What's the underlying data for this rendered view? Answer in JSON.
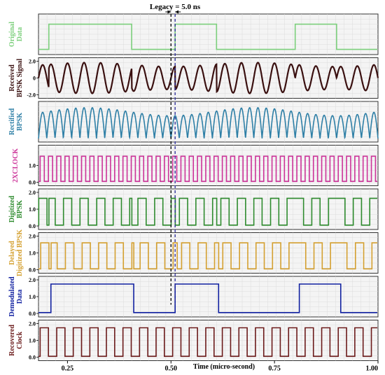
{
  "chart_data": {
    "type": "line",
    "title": "Legacy = 5.0 ns",
    "xlabel": "Time (micro-second)",
    "xlim": [
      0.18,
      1.0
    ],
    "xticks": [
      0.25,
      0.5,
      0.75,
      1.0
    ],
    "xtick_labels": [
      "0.25",
      "0.50",
      "0.75",
      "1.00"
    ],
    "markers": [
      0.5,
      0.51
    ],
    "series": [
      {
        "name": "Original Data",
        "color": "#7ccf7c",
        "ylim": [
          0,
          1
        ],
        "yticks": [],
        "kind": "digital",
        "transitions": [
          [
            0.18,
            0
          ],
          [
            0.205,
            1
          ],
          [
            0.405,
            0
          ],
          [
            0.51,
            1
          ],
          [
            0.61,
            0
          ],
          [
            0.8,
            1
          ],
          [
            0.9,
            0
          ]
        ]
      },
      {
        "name": "Received BPSK Signal",
        "color": "#3a1010",
        "ylim": [
          -2.0,
          2.0
        ],
        "yticks": [
          -2.0,
          0,
          2.0
        ],
        "ytick_labels": [
          "-2.0",
          "0",
          "2.0"
        ],
        "kind": "bpsk",
        "amplitude": 1.6,
        "freq_mhz": 25
      },
      {
        "name": "Rectified BPSK",
        "color": "#2e7fa6",
        "ylim": [
          0,
          2.0
        ],
        "yticks": [],
        "kind": "rectified",
        "amplitude": 1.6,
        "freq_mhz": 25
      },
      {
        "name": "2XCLOCK",
        "color": "#cc3399",
        "ylim": [
          0,
          2.0
        ],
        "yticks": [
          0,
          1.0
        ],
        "ytick_labels": [
          "0.0",
          "1.0"
        ],
        "kind": "clock",
        "high": 1.55,
        "period_us": 0.02
      },
      {
        "name": "Digitized BPSK",
        "color": "#2e8b2e",
        "ylim": [
          0,
          2.0
        ],
        "yticks": [
          0,
          1.0,
          2.0
        ],
        "ytick_labels": [
          "0.0",
          "1.0",
          "2.0"
        ],
        "kind": "digitized",
        "high": 1.65
      },
      {
        "name": "Delayed Digitized BPSK",
        "color": "#d4a030",
        "ylim": [
          0,
          2.0
        ],
        "yticks": [
          0,
          1.0,
          2.0
        ],
        "ytick_labels": [
          "0.0",
          "1.0",
          "2.0"
        ],
        "kind": "digitized",
        "delay_us": 0.005,
        "high": 1.6
      },
      {
        "name": "Demodulated Data",
        "color": "#1020a0",
        "ylim": [
          0,
          2.0
        ],
        "yticks": [
          0,
          1.0,
          2.0
        ],
        "ytick_labels": [
          "0.0",
          "1.0",
          "2.0"
        ],
        "kind": "digital",
        "high": 1.75,
        "transitions": [
          [
            0.18,
            0
          ],
          [
            0.21,
            1
          ],
          [
            0.41,
            0
          ],
          [
            0.51,
            1
          ],
          [
            0.615,
            0
          ],
          [
            0.81,
            1
          ],
          [
            0.91,
            0
          ]
        ]
      },
      {
        "name": "Recovered Clock",
        "color": "#6b1a1a",
        "ylim": [
          0,
          2.0
        ],
        "yticks": [
          0,
          1.0,
          2.0
        ],
        "ytick_labels": [
          "0.0",
          "1.0",
          "2.0"
        ],
        "kind": "clock",
        "high": 1.75,
        "period_us": 0.04
      }
    ]
  }
}
